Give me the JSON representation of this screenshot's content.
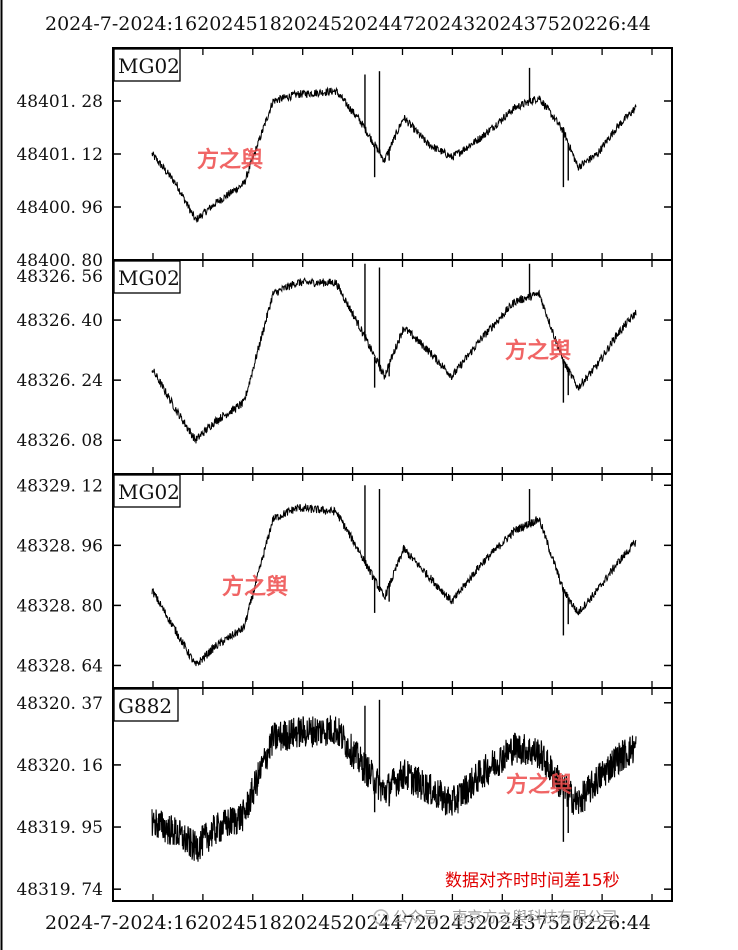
{
  "chart_data": {
    "type": "line",
    "x_tick_labels": [
      "2024-7-20",
      "21:16",
      "2024-7-18",
      "20:45",
      "2024-7-20",
      "20:47",
      "2024-7-20",
      "2024-7-20",
      "2024-7-23",
      "2024-7-25",
      "2026:44"
    ],
    "x_tick_overlap_text": "2024-7-2024:1620245182024520244720243202437520226:44",
    "panels": [
      {
        "sensor": "MG02",
        "y_ticks": [
          48401.28,
          48401.12,
          48400.96,
          48400.8
        ],
        "y_tick_labels": [
          "48401. 28",
          "48401. 12",
          "48400. 96",
          "48400. 80"
        ],
        "ylim": [
          48400.8,
          48401.44
        ],
        "noise": 0.012,
        "shape": [
          [
            0.0,
            48401.12
          ],
          [
            0.05,
            48401.03
          ],
          [
            0.09,
            48400.92
          ],
          [
            0.13,
            48400.97
          ],
          [
            0.19,
            48401.03
          ],
          [
            0.25,
            48401.28
          ],
          [
            0.3,
            48401.3
          ],
          [
            0.38,
            48401.31
          ],
          [
            0.43,
            48401.22
          ],
          [
            0.48,
            48401.1
          ],
          [
            0.52,
            48401.23
          ],
          [
            0.57,
            48401.15
          ],
          [
            0.62,
            48401.11
          ],
          [
            0.68,
            48401.17
          ],
          [
            0.75,
            48401.26
          ],
          [
            0.8,
            48401.29
          ],
          [
            0.85,
            48401.19
          ],
          [
            0.88,
            48401.08
          ],
          [
            0.92,
            48401.12
          ],
          [
            0.96,
            48401.2
          ],
          [
            1.0,
            48401.26
          ]
        ],
        "spikes": [
          [
            0.44,
            48401.36
          ],
          [
            0.46,
            48401.05
          ],
          [
            0.47,
            48401.37
          ],
          [
            0.49,
            48401.1
          ],
          [
            0.78,
            48401.38
          ],
          [
            0.85,
            48401.02
          ],
          [
            0.86,
            48401.04
          ]
        ]
      },
      {
        "sensor": "MG02",
        "y_ticks": [
          48326.4,
          48326.24,
          48326.08
        ],
        "y_tick_labels": [
          "48326. 40",
          "48326. 24",
          "48326. 08"
        ],
        "top_label": "48326. 56",
        "ylim": [
          48325.99,
          48326.56
        ],
        "noise": 0.011,
        "shape": [
          [
            0.0,
            48326.27
          ],
          [
            0.05,
            48326.16
          ],
          [
            0.09,
            48326.08
          ],
          [
            0.13,
            48326.13
          ],
          [
            0.19,
            48326.18
          ],
          [
            0.25,
            48326.47
          ],
          [
            0.3,
            48326.5
          ],
          [
            0.38,
            48326.5
          ],
          [
            0.43,
            48326.38
          ],
          [
            0.48,
            48326.25
          ],
          [
            0.52,
            48326.38
          ],
          [
            0.57,
            48326.32
          ],
          [
            0.62,
            48326.25
          ],
          [
            0.68,
            48326.35
          ],
          [
            0.75,
            48326.45
          ],
          [
            0.8,
            48326.47
          ],
          [
            0.85,
            48326.29
          ],
          [
            0.88,
            48326.22
          ],
          [
            0.92,
            48326.28
          ],
          [
            0.96,
            48326.36
          ],
          [
            1.0,
            48326.42
          ]
        ],
        "spikes": [
          [
            0.44,
            48326.55
          ],
          [
            0.46,
            48326.22
          ],
          [
            0.47,
            48326.54
          ],
          [
            0.49,
            48326.25
          ],
          [
            0.78,
            48326.55
          ],
          [
            0.85,
            48326.18
          ],
          [
            0.86,
            48326.2
          ]
        ]
      },
      {
        "sensor": "MG02",
        "y_ticks": [
          48329.12,
          48328.96,
          48328.8,
          48328.64
        ],
        "y_tick_labels": [
          "48329. 12",
          "48328. 96",
          "48328. 80",
          "48328. 64"
        ],
        "ylim": [
          48328.58,
          48329.15
        ],
        "noise": 0.011,
        "shape": [
          [
            0.0,
            48328.84
          ],
          [
            0.05,
            48328.73
          ],
          [
            0.09,
            48328.64
          ],
          [
            0.13,
            48328.69
          ],
          [
            0.19,
            48328.74
          ],
          [
            0.25,
            48329.03
          ],
          [
            0.3,
            48329.06
          ],
          [
            0.38,
            48329.05
          ],
          [
            0.43,
            48328.94
          ],
          [
            0.48,
            48328.82
          ],
          [
            0.52,
            48328.95
          ],
          [
            0.57,
            48328.88
          ],
          [
            0.62,
            48328.81
          ],
          [
            0.68,
            48328.91
          ],
          [
            0.75,
            48329.0
          ],
          [
            0.8,
            48329.03
          ],
          [
            0.85,
            48328.84
          ],
          [
            0.88,
            48328.78
          ],
          [
            0.92,
            48328.84
          ],
          [
            0.96,
            48328.91
          ],
          [
            1.0,
            48328.97
          ]
        ],
        "spikes": [
          [
            0.44,
            48329.12
          ],
          [
            0.46,
            48328.78
          ],
          [
            0.47,
            48329.11
          ],
          [
            0.49,
            48328.81
          ],
          [
            0.78,
            48329.11
          ],
          [
            0.85,
            48328.72
          ],
          [
            0.86,
            48328.75
          ]
        ]
      },
      {
        "sensor": "G882",
        "y_ticks": [
          48320.37,
          48320.16,
          48319.95,
          48319.74
        ],
        "y_tick_labels": [
          "48320. 37",
          "48320. 16",
          "48319. 95",
          "48319. 74"
        ],
        "ylim": [
          48319.7,
          48320.42
        ],
        "noise": 0.055,
        "shape": [
          [
            0.0,
            48319.97
          ],
          [
            0.05,
            48319.93
          ],
          [
            0.09,
            48319.88
          ],
          [
            0.13,
            48319.94
          ],
          [
            0.19,
            48319.99
          ],
          [
            0.25,
            48320.25
          ],
          [
            0.3,
            48320.27
          ],
          [
            0.38,
            48320.28
          ],
          [
            0.43,
            48320.17
          ],
          [
            0.48,
            48320.07
          ],
          [
            0.52,
            48320.13
          ],
          [
            0.57,
            48320.08
          ],
          [
            0.62,
            48320.03
          ],
          [
            0.68,
            48320.13
          ],
          [
            0.75,
            48320.22
          ],
          [
            0.8,
            48320.2
          ],
          [
            0.85,
            48320.08
          ],
          [
            0.88,
            48320.03
          ],
          [
            0.92,
            48320.11
          ],
          [
            0.96,
            48320.18
          ],
          [
            1.0,
            48320.22
          ]
        ],
        "spikes": [
          [
            0.44,
            48320.36
          ],
          [
            0.46,
            48320.0
          ],
          [
            0.47,
            48320.38
          ],
          [
            0.49,
            48320.02
          ],
          [
            0.85,
            48319.9
          ],
          [
            0.86,
            48319.93
          ]
        ]
      }
    ],
    "watermarks": [
      "方之舆",
      "方之舆",
      "方之舆",
      "方之舆"
    ],
    "annotation": "数据对齐时时间差15秒"
  },
  "footer": {
    "wechat_label": "公众号 · 南京方之舆科技有限公司"
  }
}
